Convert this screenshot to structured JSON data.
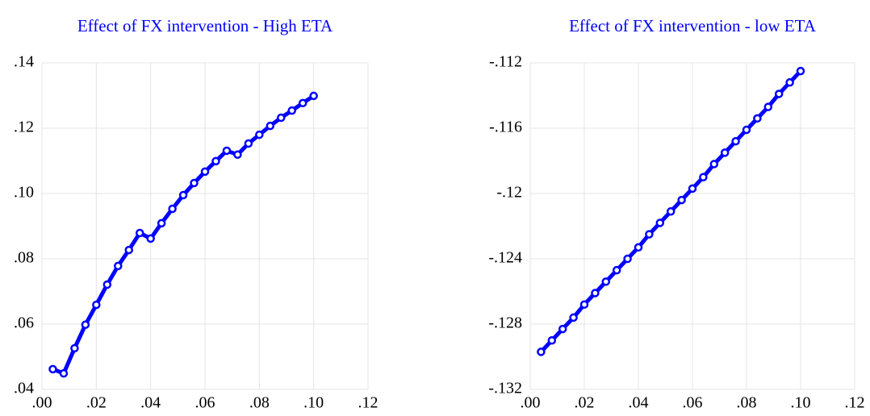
{
  "chart_data": [
    {
      "type": "line",
      "title": "Effect of FX intervention - High ETA",
      "color": "#0000ff",
      "grid": true,
      "x": [
        0.004,
        0.008,
        0.012,
        0.016,
        0.02,
        0.024,
        0.028,
        0.032,
        0.036,
        0.04,
        0.044,
        0.048,
        0.052,
        0.056,
        0.06,
        0.064,
        0.068,
        0.072,
        0.076,
        0.08,
        0.084,
        0.088,
        0.092,
        0.096,
        0.1
      ],
      "values": [
        0.0462,
        0.0449,
        0.0526,
        0.0598,
        0.0659,
        0.0721,
        0.0778,
        0.0827,
        0.0879,
        0.0862,
        0.0909,
        0.0953,
        0.0995,
        0.1032,
        0.1067,
        0.1099,
        0.1131,
        0.1119,
        0.1153,
        0.118,
        0.1207,
        0.1232,
        0.1254,
        0.1277,
        0.1299
      ],
      "xlim": [
        0,
        0.12
      ],
      "xticks": [
        {
          "value": 0,
          "label": ".00"
        },
        {
          "value": 0.02,
          "label": ".02"
        },
        {
          "value": 0.04,
          "label": ".04"
        },
        {
          "value": 0.06,
          "label": ".06"
        },
        {
          "value": 0.08,
          "label": ".08"
        },
        {
          "value": 0.1,
          "label": ".10"
        },
        {
          "value": 0.12,
          "label": ".12"
        }
      ],
      "ylim": [
        0.04,
        0.14
      ],
      "yticks": [
        {
          "value": 0.04,
          "label": ".04"
        },
        {
          "value": 0.06,
          "label": ".06"
        },
        {
          "value": 0.08,
          "label": ".08"
        },
        {
          "value": 0.1,
          "label": ".10"
        },
        {
          "value": 0.12,
          "label": ".12"
        },
        {
          "value": 0.14,
          "label": ".14"
        }
      ]
    },
    {
      "type": "line",
      "title": "Effect of FX intervention - low ETA",
      "color": "#0000ff",
      "grid": true,
      "x": [
        0.004,
        0.008,
        0.012,
        0.016,
        0.02,
        0.024,
        0.028,
        0.032,
        0.036,
        0.04,
        0.044,
        0.048,
        0.052,
        0.056,
        0.06,
        0.064,
        0.068,
        0.072,
        0.076,
        0.08,
        0.084,
        0.088,
        0.092,
        0.096,
        0.1
      ],
      "values": [
        -0.1297,
        -0.129,
        -0.1283,
        -0.1276,
        -0.1268,
        -0.1261,
        -0.1254,
        -0.1247,
        -0.124,
        -0.1233,
        -0.1225,
        -0.1218,
        -0.1211,
        -0.1204,
        -0.1197,
        -0.119,
        -0.1182,
        -0.1175,
        -0.1168,
        -0.1161,
        -0.1154,
        -0.1147,
        -0.1139,
        -0.1132,
        -0.1125
      ],
      "xlim": [
        0,
        0.12
      ],
      "xticks": [
        {
          "value": 0,
          "label": ".00"
        },
        {
          "value": 0.02,
          "label": ".02"
        },
        {
          "value": 0.04,
          "label": ".04"
        },
        {
          "value": 0.06,
          "label": ".06"
        },
        {
          "value": 0.08,
          "label": ".08"
        },
        {
          "value": 0.1,
          "label": ".10"
        },
        {
          "value": 0.12,
          "label": ".12"
        }
      ],
      "ylim": [
        -0.132,
        -0.112
      ],
      "yticks": [
        {
          "value": -0.132,
          "label": "-.132"
        },
        {
          "value": -0.128,
          "label": "-.128"
        },
        {
          "value": -0.124,
          "label": "-.124"
        },
        {
          "value": -0.12,
          "label": "-.12"
        },
        {
          "value": -0.116,
          "label": "-.116"
        },
        {
          "value": -0.112,
          "label": "-.112"
        }
      ]
    }
  ]
}
